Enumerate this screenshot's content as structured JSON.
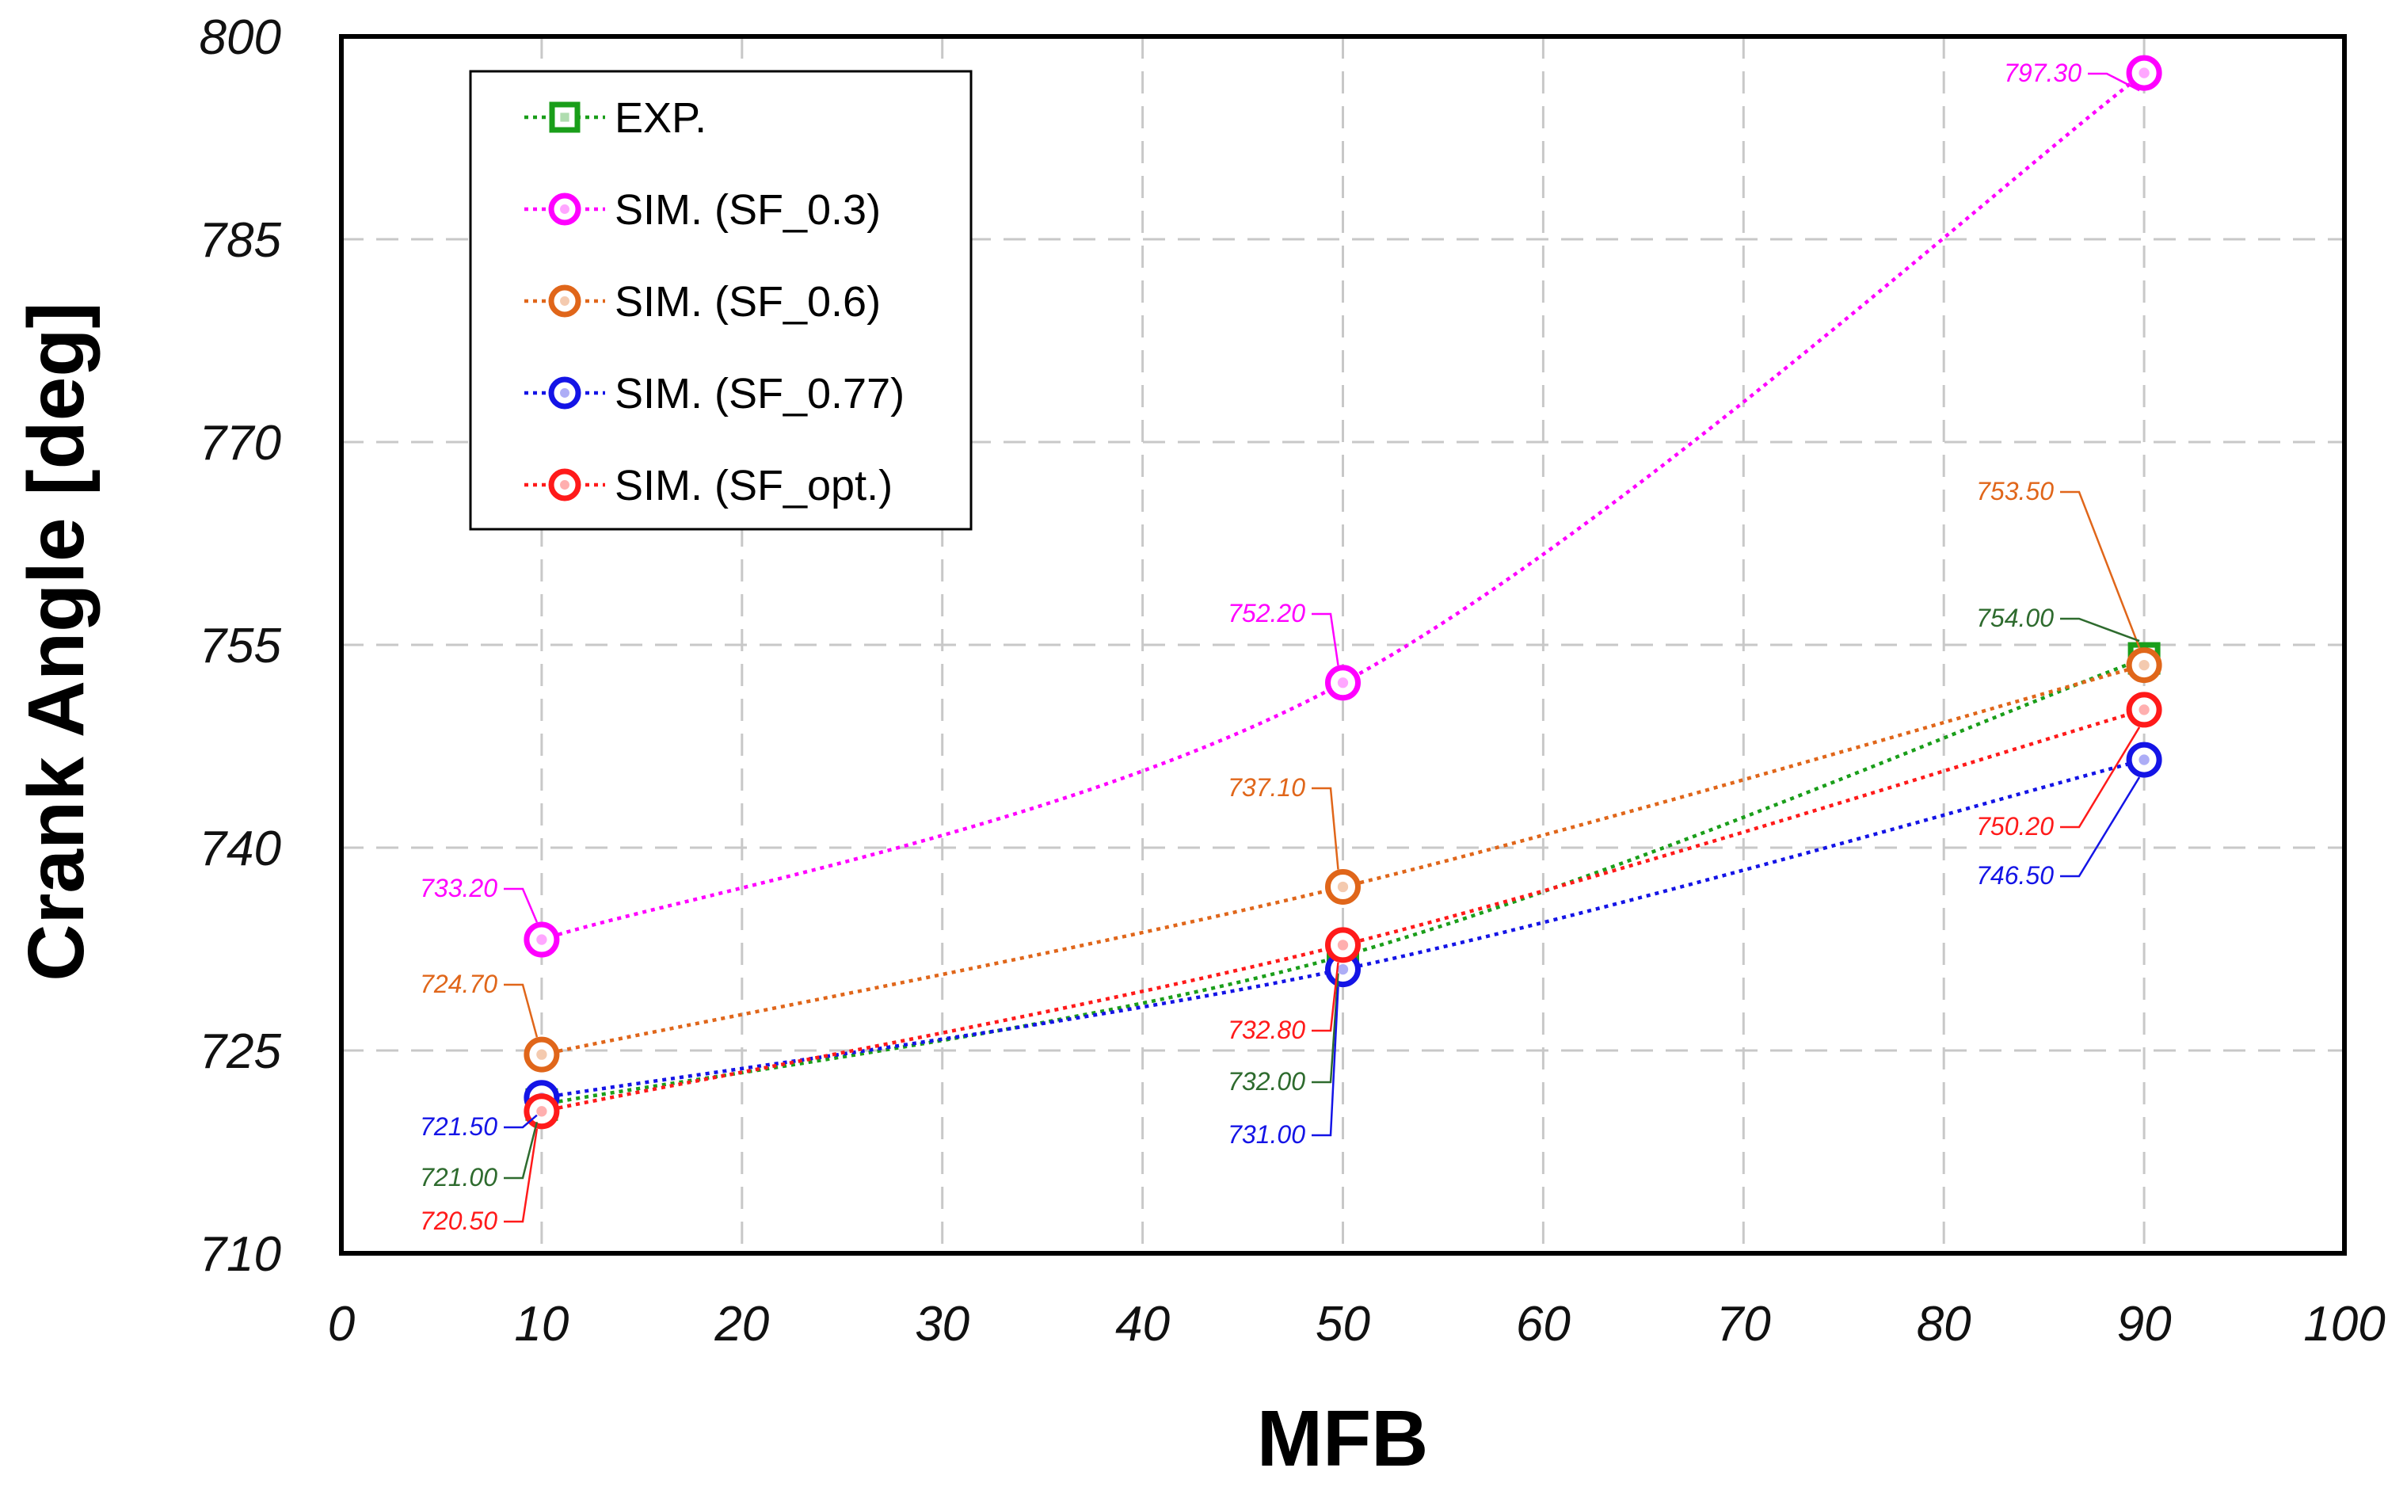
{
  "chart_data": {
    "type": "line",
    "xlabel": "MFB",
    "ylabel": "Crank Angle [deg]",
    "xlim": [
      0,
      100
    ],
    "ylim": [
      710,
      800
    ],
    "xticks": [
      "0",
      "10",
      "20",
      "30",
      "40",
      "50",
      "60",
      "70",
      "80",
      "90",
      "100"
    ],
    "yticks": [
      "710",
      "725",
      "740",
      "755",
      "770",
      "785",
      "800"
    ],
    "grid": true,
    "legend_position": "top-left",
    "x": [
      10,
      50,
      90
    ],
    "series": [
      {
        "name": "EXP.",
        "color": "#1a9e1a",
        "label_color": "#2e6b2e",
        "marker": "square",
        "values": [
          721.0,
          732.0,
          754.0
        ],
        "labels": [
          "721.00",
          "732.00",
          "754.00"
        ]
      },
      {
        "name": "SIM. (SF_0.3)",
        "color": "#ff00ff",
        "label_color": "#ff00ff",
        "marker": "circle",
        "values": [
          733.2,
          752.2,
          797.3
        ],
        "labels": [
          "733.20",
          "752.20",
          "797.30"
        ]
      },
      {
        "name": "SIM. (SF_0.6)",
        "color": "#e0661a",
        "label_color": "#e0661a",
        "marker": "circle",
        "values": [
          724.7,
          737.1,
          753.5
        ],
        "labels": [
          "724.70",
          "737.10",
          "753.50"
        ]
      },
      {
        "name": "SIM. (SF_0.77)",
        "color": "#1414e6",
        "label_color": "#1414e6",
        "marker": "circle",
        "values": [
          721.5,
          731.0,
          746.5
        ],
        "labels": [
          "721.50",
          "731.00",
          "746.50"
        ]
      },
      {
        "name": "SIM. (SF_opt.)",
        "color": "#ff1a1a",
        "label_color": "#ff1a1a",
        "marker": "circle",
        "values": [
          720.5,
          732.8,
          750.2
        ],
        "labels": [
          "720.50",
          "732.80",
          "750.20"
        ]
      }
    ]
  }
}
